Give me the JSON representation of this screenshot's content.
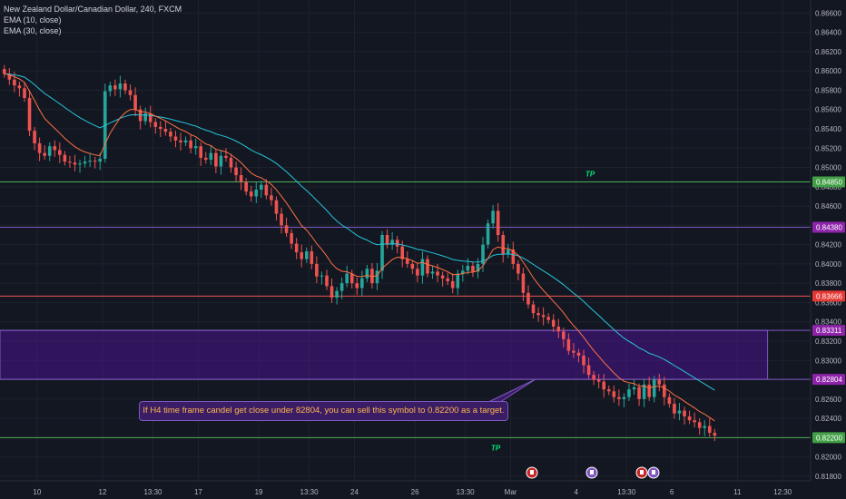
{
  "header": {
    "symbol_line": "New Zealand Dollar/Canadian Dollar, 240, FXCM",
    "indicator_1": "EMA (10, close)",
    "indicator_2": "EMA (30, close)"
  },
  "annotation": {
    "text": "If H4 time frame candel get close under 82804, you can sell this symbol to 0.82200 as a target.",
    "tp_label": "TP"
  },
  "colors": {
    "background": "#131722",
    "bull": "#26a69a",
    "bear": "#ef5350",
    "ema_fast": "#ff7043",
    "ema_slow": "#26c6da",
    "tp_line": "#4caf50",
    "zone": "#4a148c",
    "zone_border": "#7e57c2",
    "red_line": "#ef5350",
    "axis_text": "#b2b5be"
  },
  "event_icons": [
    "event-flag-icon",
    "event-flag-icon",
    "event-flag-icon"
  ],
  "chart_data": {
    "type": "candlestick",
    "title": "New Zealand Dollar/Canadian Dollar, 240, FXCM",
    "ylim": [
      0.8178,
      0.8666
    ],
    "y_ticks": [
      "0.86600",
      "0.86400",
      "0.86200",
      "0.86000",
      "0.85800",
      "0.85600",
      "0.85400",
      "0.85200",
      "0.85000",
      "0.84800",
      "0.84600",
      "0.84400",
      "0.84200",
      "0.84000",
      "0.83800",
      "0.83600",
      "0.83400",
      "0.83200",
      "0.83000",
      "0.82800",
      "0.82600",
      "0.82400",
      "0.82200",
      "0.82000",
      "0.81800"
    ],
    "y_tick_values": [
      0.866,
      0.864,
      0.862,
      0.86,
      0.858,
      0.856,
      0.854,
      0.852,
      0.85,
      0.848,
      0.846,
      0.844,
      0.842,
      0.84,
      0.838,
      0.836,
      0.834,
      0.832,
      0.83,
      0.828,
      0.826,
      0.824,
      0.822,
      0.82,
      0.818
    ],
    "x_ticks": [
      {
        "label": "10",
        "bar": 7
      },
      {
        "label": "12",
        "bar": 20
      },
      {
        "label": "13:30",
        "bar": 30
      },
      {
        "label": "17",
        "bar": 39
      },
      {
        "label": "19",
        "bar": 51
      },
      {
        "label": "13:30",
        "bar": 61
      },
      {
        "label": "24",
        "bar": 70
      },
      {
        "label": "26",
        "bar": 82
      },
      {
        "label": "13:30",
        "bar": 92
      },
      {
        "label": "Mar",
        "bar": 101
      },
      {
        "label": "4",
        "bar": 114
      },
      {
        "label": "13:30",
        "bar": 124
      },
      {
        "label": "6",
        "bar": 133
      },
      {
        "label": "11",
        "bar": 146
      },
      {
        "label": "12:30",
        "bar": 155
      }
    ],
    "bar_count": 170,
    "closes": [
      0.8597,
      0.8591,
      0.8585,
      0.8582,
      0.8572,
      0.8538,
      0.8525,
      0.8515,
      0.8512,
      0.8522,
      0.8518,
      0.8513,
      0.8506,
      0.8505,
      0.8503,
      0.8504,
      0.8506,
      0.8507,
      0.8506,
      0.8509,
      0.8579,
      0.8585,
      0.8581,
      0.8587,
      0.858,
      0.8575,
      0.856,
      0.8548,
      0.8556,
      0.8547,
      0.8542,
      0.854,
      0.8537,
      0.8532,
      0.8528,
      0.8526,
      0.8528,
      0.852,
      0.8522,
      0.851,
      0.8508,
      0.8515,
      0.8501,
      0.8512,
      0.851,
      0.85,
      0.8492,
      0.8485,
      0.8475,
      0.847,
      0.8477,
      0.8482,
      0.8471,
      0.8466,
      0.8452,
      0.844,
      0.8432,
      0.8421,
      0.8412,
      0.8405,
      0.8413,
      0.84,
      0.8387,
      0.8388,
      0.8377,
      0.8365,
      0.8372,
      0.838,
      0.839,
      0.838,
      0.8375,
      0.8385,
      0.8395,
      0.838,
      0.8393,
      0.843,
      0.842,
      0.8425,
      0.8418,
      0.8405,
      0.84,
      0.8395,
      0.8388,
      0.8405,
      0.839,
      0.8392,
      0.8388,
      0.8385,
      0.8382,
      0.8375,
      0.839,
      0.8393,
      0.8398,
      0.8392,
      0.84,
      0.842,
      0.8442,
      0.8455,
      0.843,
      0.841,
      0.8415,
      0.84,
      0.839,
      0.837,
      0.8358,
      0.8349,
      0.8347,
      0.8345,
      0.8342,
      0.8335,
      0.833,
      0.8322,
      0.831,
      0.8308,
      0.8305,
      0.8295,
      0.8285,
      0.828,
      0.8278,
      0.827,
      0.8268,
      0.8262,
      0.826,
      0.8262,
      0.827,
      0.8272,
      0.826,
      0.8275,
      0.8262,
      0.828,
      0.8275,
      0.8262,
      0.8255,
      0.8245,
      0.8248,
      0.8242,
      0.8238,
      0.8236,
      0.823,
      0.8232,
      0.8225,
      0.8222
    ],
    "ema_labels": [
      "EMA (10, close)",
      "EMA (30, close)"
    ],
    "horizontal_levels": [
      {
        "value": 0.8485,
        "label": "0.84850",
        "kind": "tp"
      },
      {
        "value": 0.8438,
        "label": "0.84380",
        "kind": "purple"
      },
      {
        "value": 0.83666,
        "label": "0.83666",
        "kind": "red"
      },
      {
        "value": 0.83311,
        "label": "0.83311",
        "kind": "purple"
      },
      {
        "value": 0.82804,
        "label": "0.82804",
        "kind": "purple"
      },
      {
        "value": 0.822,
        "label": "0.82200",
        "kind": "tp"
      }
    ],
    "zone": {
      "top": 0.83311,
      "bottom": 0.82804,
      "end_bar": 152
    },
    "tp_markers": [
      {
        "value": 0.8485,
        "bar": 120,
        "text": "TP"
      },
      {
        "value": 0.822,
        "bar": 101,
        "text": "TP"
      }
    ]
  }
}
